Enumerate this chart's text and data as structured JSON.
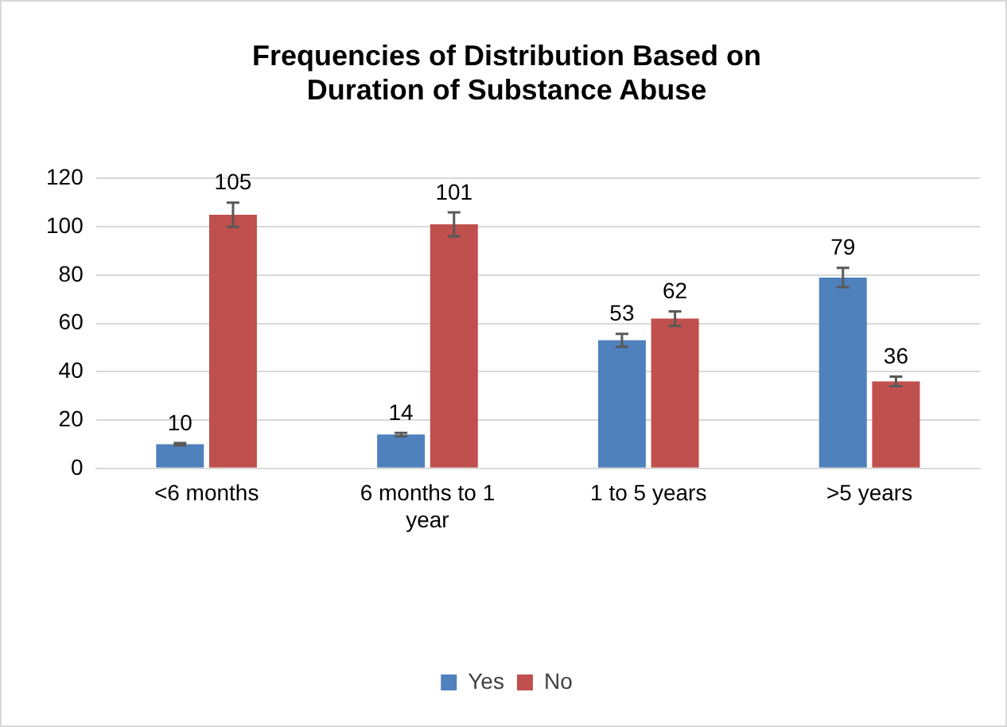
{
  "chart_data": {
    "type": "bar",
    "title": "Frequencies of Distribution Based on Duration of Substance Abuse",
    "categories": [
      "<6 months",
      "6 months to 1 year",
      "1 to 5 years",
      ">5 years"
    ],
    "series": [
      {
        "name": "Yes",
        "color": "#4f81bd",
        "values": [
          10,
          14,
          53,
          79
        ],
        "errors": [
          0.5,
          0.7,
          2.7,
          4
        ]
      },
      {
        "name": "No",
        "color": "#c0504d",
        "values": [
          105,
          101,
          62,
          36
        ],
        "errors": [
          5,
          5,
          3,
          2
        ]
      }
    ],
    "ylim": [
      0,
      120
    ],
    "yticks": [
      0,
      20,
      40,
      60,
      80,
      100,
      120
    ],
    "grid": "y",
    "legend": "bottom",
    "data_labels": true
  }
}
